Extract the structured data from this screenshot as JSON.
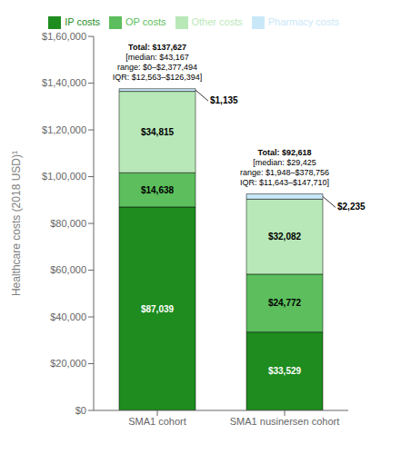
{
  "chart_data": {
    "type": "bar",
    "stacked": true,
    "data_labels": true,
    "grid": false,
    "legend": "upper right",
    "categories": [
      "SMA1 cohort",
      "SMA1 nusinersen cohort"
    ],
    "series": [
      {
        "name": "IP costs",
        "color": "#1e8c1e",
        "values": [
          87039,
          33529
        ],
        "value_labels": [
          "$87,039",
          "$33,529"
        ]
      },
      {
        "name": "OP costs",
        "color": "#5cbe5c",
        "values": [
          14638,
          24772
        ],
        "value_labels": [
          "$14,638",
          "$24,772"
        ]
      },
      {
        "name": "Other costs",
        "color": "#b8e8b8",
        "values": [
          34815,
          32082
        ],
        "value_labels": [
          "$34,815",
          "$32,082"
        ]
      },
      {
        "name": "Pharmacy costs",
        "color": "#c8e8f8",
        "values": [
          1135,
          2235
        ],
        "value_labels": [
          "$1,135",
          "$2,235"
        ]
      }
    ],
    "ylabel": "Healthcare costs (2018 USD)¹",
    "ylim": [
      0,
      160000
    ],
    "yticks": [
      {
        "value": 0,
        "label": "$0"
      },
      {
        "value": 20000,
        "label": "$20,000"
      },
      {
        "value": 40000,
        "label": "$40,000"
      },
      {
        "value": 60000,
        "label": "$60,000"
      },
      {
        "value": 80000,
        "label": "$80,000"
      },
      {
        "value": 100000,
        "label": "$1,00,000"
      },
      {
        "value": 120000,
        "label": "$1,20,000"
      },
      {
        "value": 140000,
        "label": "$1,40,000"
      },
      {
        "value": 160000,
        "label": "$1,60,000"
      }
    ],
    "annotations": [
      {
        "category": "SMA1 cohort",
        "lines": [
          "Total: $137,627",
          "[median: $43,167",
          "range: $0–$2,377,494",
          "IQR: $12,563–$126,394]"
        ]
      },
      {
        "category": "SMA1 nusinersen cohort",
        "lines": [
          "Total: $92,618",
          "[median: $29,425",
          "range: $1,948–$378,756",
          "IQR: $11,643–$147,710]"
        ]
      }
    ]
  }
}
